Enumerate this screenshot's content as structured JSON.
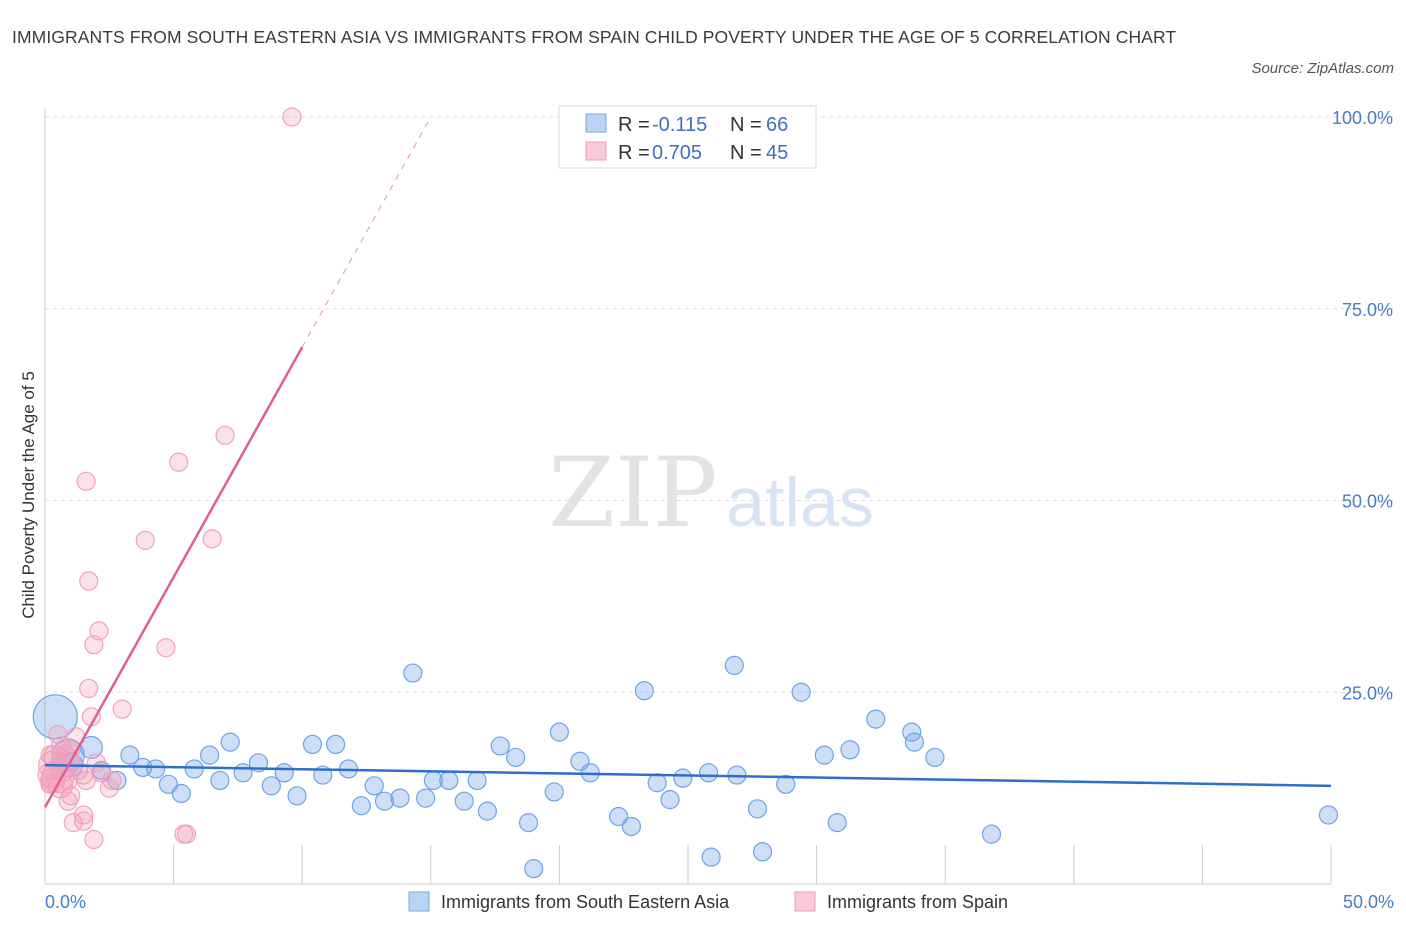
{
  "title": "IMMIGRANTS FROM SOUTH EASTERN ASIA VS IMMIGRANTS FROM SPAIN CHILD POVERTY UNDER THE AGE OF 5 CORRELATION CHART",
  "source": "Source: ZipAtlas.com",
  "watermark": {
    "zip": "ZIP",
    "atlas": "atlas"
  },
  "chart_data": {
    "type": "scatter",
    "xlabel": "",
    "ylabel": "Child Poverty Under the Age of 5",
    "xlim": [
      0,
      50
    ],
    "ylim": [
      0,
      100
    ],
    "x_tick_labels": [
      "0.0%",
      "50.0%"
    ],
    "y_ticks": [
      25,
      50,
      75,
      100
    ],
    "y_tick_labels": [
      "25.0%",
      "50.0%",
      "75.0%",
      "100.0%"
    ],
    "grid": true,
    "legend_stats": [
      {
        "r_label": "R =",
        "r": "-0.115",
        "n_label": "N =",
        "n": "66",
        "color": "#a8c8f0"
      },
      {
        "r_label": "R =",
        "r": "0.705",
        "n_label": "N =",
        "n": "45",
        "color": "#f6b8cb"
      }
    ],
    "series": [
      {
        "name": "Immigrants from South Eastern Asia",
        "color": "#6fa3e6",
        "line_color": "#2f6fcc",
        "trend": {
          "x0": 0,
          "y0": 15.5,
          "x1": 50,
          "y1": 12.8
        },
        "points": [
          {
            "x": 0.4,
            "y": 21.8,
            "s": 22
          },
          {
            "x": 0.9,
            "y": 16.8,
            "s": 16
          },
          {
            "x": 1.0,
            "y": 15.5,
            "s": 12
          },
          {
            "x": 1.8,
            "y": 17.8,
            "s": 11
          },
          {
            "x": 2.2,
            "y": 14.8,
            "s": 9
          },
          {
            "x": 2.8,
            "y": 13.5,
            "s": 9
          },
          {
            "x": 3.3,
            "y": 16.8,
            "s": 9
          },
          {
            "x": 3.8,
            "y": 15.2,
            "s": 9
          },
          {
            "x": 4.3,
            "y": 15.0,
            "s": 9
          },
          {
            "x": 4.8,
            "y": 13.0,
            "s": 9
          },
          {
            "x": 5.3,
            "y": 11.8,
            "s": 9
          },
          {
            "x": 5.8,
            "y": 15.0,
            "s": 9
          },
          {
            "x": 6.4,
            "y": 16.8,
            "s": 9
          },
          {
            "x": 6.8,
            "y": 13.5,
            "s": 9
          },
          {
            "x": 7.2,
            "y": 18.5,
            "s": 9
          },
          {
            "x": 7.7,
            "y": 14.5,
            "s": 9
          },
          {
            "x": 8.3,
            "y": 15.8,
            "s": 9
          },
          {
            "x": 8.8,
            "y": 12.8,
            "s": 9
          },
          {
            "x": 9.3,
            "y": 14.5,
            "s": 9
          },
          {
            "x": 9.8,
            "y": 11.5,
            "s": 9
          },
          {
            "x": 10.4,
            "y": 18.2,
            "s": 9
          },
          {
            "x": 10.8,
            "y": 14.2,
            "s": 9
          },
          {
            "x": 11.3,
            "y": 18.2,
            "s": 9
          },
          {
            "x": 11.8,
            "y": 15.0,
            "s": 9
          },
          {
            "x": 12.3,
            "y": 10.2,
            "s": 9
          },
          {
            "x": 12.8,
            "y": 12.8,
            "s": 9
          },
          {
            "x": 13.2,
            "y": 10.8,
            "s": 9
          },
          {
            "x": 13.8,
            "y": 11.2,
            "s": 9
          },
          {
            "x": 14.3,
            "y": 27.5,
            "s": 9
          },
          {
            "x": 14.8,
            "y": 11.2,
            "s": 9
          },
          {
            "x": 15.1,
            "y": 13.5,
            "s": 9
          },
          {
            "x": 15.7,
            "y": 13.5,
            "s": 9
          },
          {
            "x": 16.3,
            "y": 10.8,
            "s": 9
          },
          {
            "x": 16.8,
            "y": 13.5,
            "s": 9
          },
          {
            "x": 17.2,
            "y": 9.5,
            "s": 9
          },
          {
            "x": 17.7,
            "y": 18.0,
            "s": 9
          },
          {
            "x": 18.3,
            "y": 16.5,
            "s": 9
          },
          {
            "x": 18.8,
            "y": 8.0,
            "s": 9
          },
          {
            "x": 19.0,
            "y": 2.0,
            "s": 9
          },
          {
            "x": 19.8,
            "y": 12.0,
            "s": 9
          },
          {
            "x": 20.0,
            "y": 19.8,
            "s": 9
          },
          {
            "x": 20.8,
            "y": 16.0,
            "s": 9
          },
          {
            "x": 21.2,
            "y": 14.5,
            "s": 9
          },
          {
            "x": 22.3,
            "y": 8.8,
            "s": 9
          },
          {
            "x": 22.8,
            "y": 7.5,
            "s": 9
          },
          {
            "x": 23.3,
            "y": 25.2,
            "s": 9
          },
          {
            "x": 23.8,
            "y": 13.2,
            "s": 9
          },
          {
            "x": 24.3,
            "y": 11.0,
            "s": 9
          },
          {
            "x": 24.8,
            "y": 13.8,
            "s": 9
          },
          {
            "x": 25.8,
            "y": 14.5,
            "s": 9
          },
          {
            "x": 25.9,
            "y": 3.5,
            "s": 9
          },
          {
            "x": 26.8,
            "y": 28.5,
            "s": 9
          },
          {
            "x": 26.9,
            "y": 14.2,
            "s": 9
          },
          {
            "x": 27.7,
            "y": 9.8,
            "s": 9
          },
          {
            "x": 27.9,
            "y": 4.2,
            "s": 9
          },
          {
            "x": 28.8,
            "y": 13.0,
            "s": 9
          },
          {
            "x": 29.4,
            "y": 25.0,
            "s": 9
          },
          {
            "x": 30.3,
            "y": 16.8,
            "s": 9
          },
          {
            "x": 30.8,
            "y": 8.0,
            "s": 9
          },
          {
            "x": 31.3,
            "y": 17.5,
            "s": 9
          },
          {
            "x": 32.3,
            "y": 21.5,
            "s": 9
          },
          {
            "x": 33.7,
            "y": 19.8,
            "s": 9
          },
          {
            "x": 33.8,
            "y": 18.5,
            "s": 9
          },
          {
            "x": 34.6,
            "y": 16.5,
            "s": 9
          },
          {
            "x": 36.8,
            "y": 6.5,
            "s": 9
          },
          {
            "x": 49.9,
            "y": 9.0,
            "s": 9
          }
        ]
      },
      {
        "name": "Immigrants from Spain",
        "color": "#f2a0bb",
        "line_color": "#e0608a",
        "trend": {
          "x0": 0,
          "y0": 10.0,
          "x1": 10,
          "y1": 70.0
        },
        "trend_dash": {
          "x0": 10,
          "y0": 70.0,
          "x1": 15,
          "y1": 100.0
        },
        "points": [
          {
            "x": 9.6,
            "y": 100.0,
            "s": 9
          },
          {
            "x": 7.0,
            "y": 58.5,
            "s": 9
          },
          {
            "x": 5.2,
            "y": 55.0,
            "s": 9
          },
          {
            "x": 1.6,
            "y": 52.5,
            "s": 9
          },
          {
            "x": 3.9,
            "y": 44.8,
            "s": 9
          },
          {
            "x": 6.5,
            "y": 45.0,
            "s": 9
          },
          {
            "x": 1.7,
            "y": 39.5,
            "s": 9
          },
          {
            "x": 2.1,
            "y": 33.0,
            "s": 9
          },
          {
            "x": 1.9,
            "y": 31.2,
            "s": 9
          },
          {
            "x": 4.7,
            "y": 30.8,
            "s": 9
          },
          {
            "x": 1.7,
            "y": 25.5,
            "s": 9
          },
          {
            "x": 3.0,
            "y": 22.8,
            "s": 9
          },
          {
            "x": 1.8,
            "y": 21.8,
            "s": 9
          },
          {
            "x": 0.5,
            "y": 19.5,
            "s": 9
          },
          {
            "x": 1.2,
            "y": 19.2,
            "s": 9
          },
          {
            "x": 0.6,
            "y": 18.0,
            "s": 9
          },
          {
            "x": 1.0,
            "y": 17.5,
            "s": 9
          },
          {
            "x": 0.2,
            "y": 16.8,
            "s": 9
          },
          {
            "x": 0.4,
            "y": 16.5,
            "s": 12
          },
          {
            "x": 0.8,
            "y": 16.0,
            "s": 14
          },
          {
            "x": 0.3,
            "y": 15.5,
            "s": 14
          },
          {
            "x": 0.7,
            "y": 15.0,
            "s": 12
          },
          {
            "x": 1.3,
            "y": 14.8,
            "s": 9
          },
          {
            "x": 0.2,
            "y": 14.2,
            "s": 12
          },
          {
            "x": 0.5,
            "y": 14.0,
            "s": 16
          },
          {
            "x": 1.5,
            "y": 14.2,
            "s": 9
          },
          {
            "x": 2.2,
            "y": 14.5,
            "s": 9
          },
          {
            "x": 0.3,
            "y": 13.5,
            "s": 12
          },
          {
            "x": 0.9,
            "y": 13.5,
            "s": 9
          },
          {
            "x": 1.6,
            "y": 13.5,
            "s": 9
          },
          {
            "x": 2.6,
            "y": 13.5,
            "s": 9
          },
          {
            "x": 0.2,
            "y": 13.0,
            "s": 9
          },
          {
            "x": 0.6,
            "y": 12.8,
            "s": 12
          },
          {
            "x": 2.5,
            "y": 12.5,
            "s": 9
          },
          {
            "x": 1.0,
            "y": 11.5,
            "s": 9
          },
          {
            "x": 0.9,
            "y": 10.8,
            "s": 9
          },
          {
            "x": 1.5,
            "y": 9.0,
            "s": 9
          },
          {
            "x": 1.5,
            "y": 8.2,
            "s": 9
          },
          {
            "x": 1.1,
            "y": 8.0,
            "s": 9
          },
          {
            "x": 5.4,
            "y": 6.5,
            "s": 9
          },
          {
            "x": 5.5,
            "y": 6.5,
            "s": 9
          },
          {
            "x": 1.9,
            "y": 5.8,
            "s": 9
          },
          {
            "x": 0.4,
            "y": 13.8,
            "s": 9
          },
          {
            "x": 2.0,
            "y": 15.8,
            "s": 9
          },
          {
            "x": 0.8,
            "y": 17.0,
            "s": 9
          }
        ]
      }
    ]
  }
}
